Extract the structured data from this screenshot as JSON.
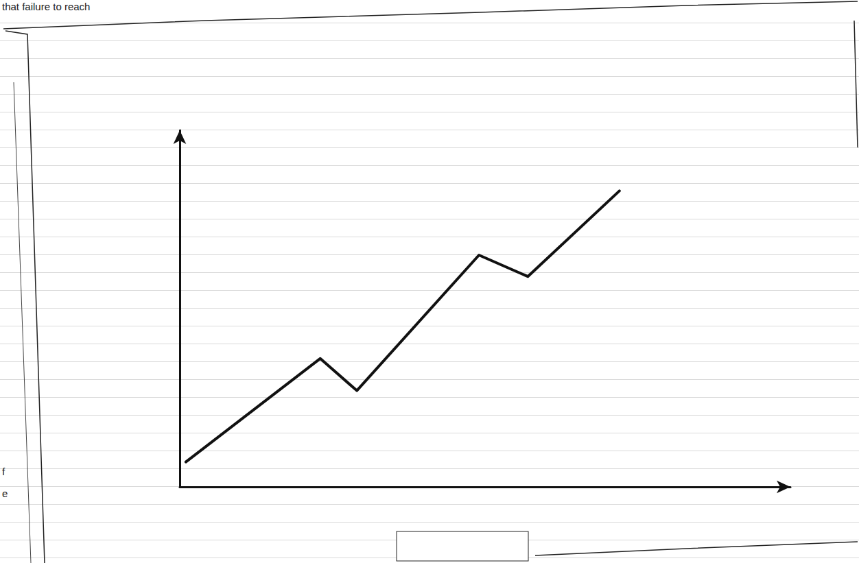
{
  "chart_data": {
    "type": "line",
    "annotations": [
      "that failure to reach",
      "f",
      "e"
    ],
    "x": [
      1,
      23,
      29,
      49,
      57,
      72
    ],
    "values": [
      7,
      36,
      27,
      65,
      59,
      83
    ],
    "color": "#111111",
    "xlim": [
      0,
      100
    ],
    "ylim": [
      0,
      100
    ],
    "grid": false,
    "tick_labels": false,
    "marker": "none",
    "line_style": "solid"
  }
}
